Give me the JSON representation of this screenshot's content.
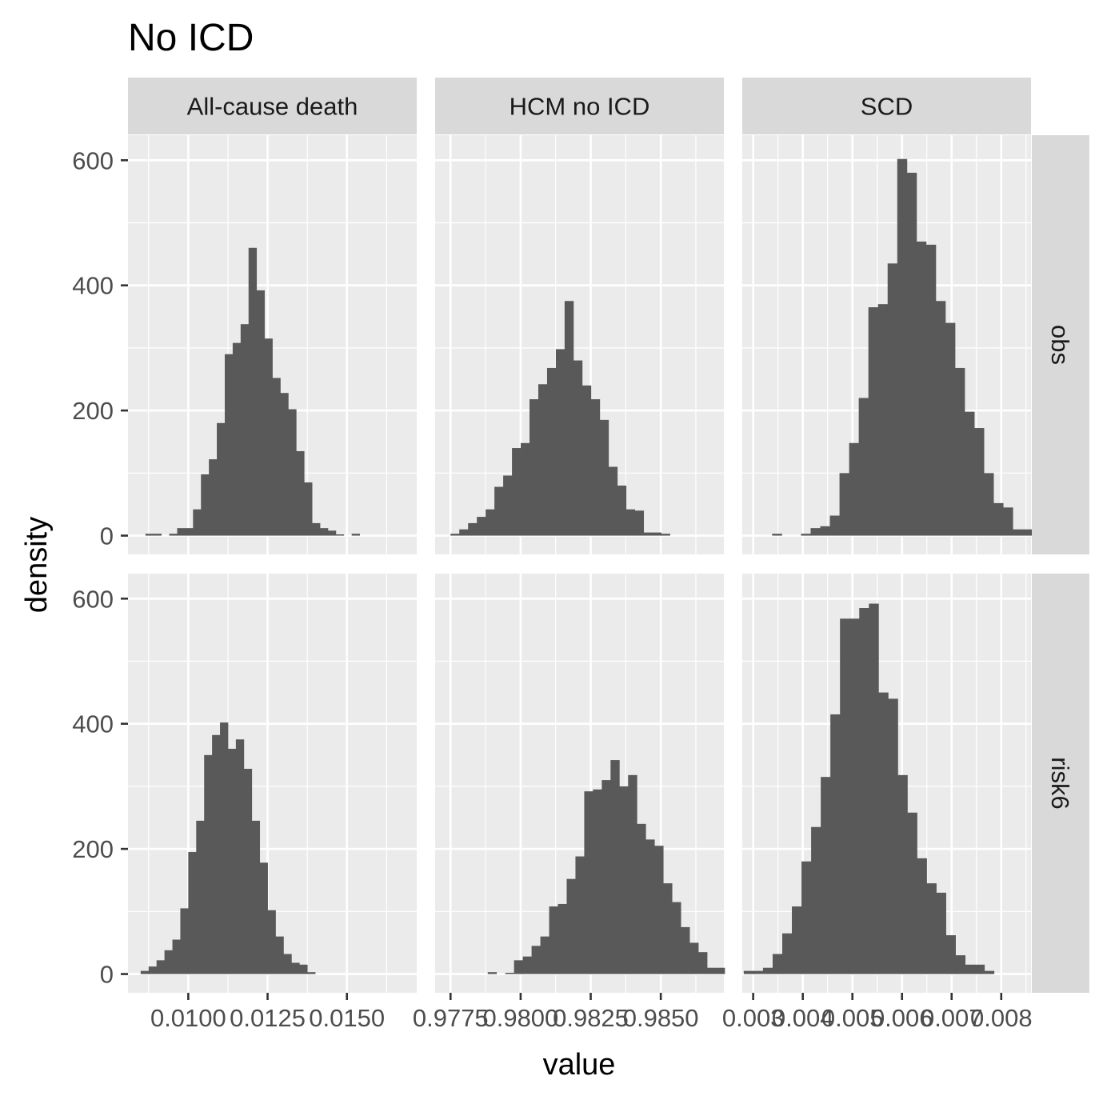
{
  "chart_data": {
    "type": "bar",
    "title": "No ICD",
    "xlabel": "value",
    "ylabel": "density",
    "ylim": [
      -30,
      640
    ],
    "y_ticks": [
      0,
      200,
      400,
      600
    ],
    "y_tick_labels": [
      "0",
      "200",
      "400",
      "600"
    ],
    "grid": true,
    "columns": [
      "All-cause death",
      "HCM no ICD",
      "SCD"
    ],
    "rows": [
      "obs",
      "risk6"
    ],
    "panels": [
      {
        "column": "All-cause death",
        "x_ticks": [
          0.01,
          0.0125,
          0.015
        ],
        "x_tick_labels": [
          "0.0100",
          "0.0125",
          "0.0150"
        ],
        "xlim": [
          0.0081,
          0.0172
        ],
        "obs": {
          "bin_start": 0.00865,
          "bin_width": 0.00025,
          "values": [
            3,
            3,
            0,
            3,
            12,
            12,
            42,
            98,
            122,
            180,
            290,
            308,
            338,
            460,
            392,
            315,
            252,
            228,
            202,
            135,
            85,
            20,
            12,
            8,
            2,
            0,
            3,
            0
          ]
        },
        "risk6": {
          "bin_start": 0.0085,
          "bin_width": 0.00025,
          "values": [
            5,
            12,
            22,
            38,
            55,
            105,
            195,
            245,
            350,
            382,
            402,
            360,
            375,
            328,
            245,
            178,
            102,
            60,
            32,
            18,
            15,
            3
          ]
        }
      },
      {
        "column": "HCM no ICD",
        "x_ticks": [
          0.9775,
          0.98,
          0.9825,
          0.985
        ],
        "x_tick_labels": [
          "0.9775",
          "0.9800",
          "0.9825",
          "0.9850"
        ],
        "xlim": [
          0.97695,
          0.98725
        ],
        "obs": {
          "bin_start": 0.9775,
          "bin_width": 0.000313,
          "values": [
            3,
            10,
            20,
            30,
            42,
            78,
            96,
            140,
            148,
            218,
            242,
            268,
            298,
            375,
            280,
            240,
            218,
            185,
            110,
            80,
            42,
            40,
            5,
            5,
            3,
            0,
            0,
            0,
            0,
            0,
            0
          ]
        },
        "risk6": {
          "bin_start": 0.9782,
          "bin_width": 0.000313,
          "values": [
            0,
            0,
            3,
            0,
            2,
            22,
            28,
            45,
            60,
            108,
            112,
            152,
            188,
            292,
            295,
            310,
            342,
            300,
            318,
            240,
            215,
            205,
            145,
            115,
            75,
            50,
            35,
            10,
            10
          ]
        }
      },
      {
        "column": "SCD",
        "x_ticks": [
          0.003,
          0.004,
          0.005,
          0.006,
          0.007,
          0.008
        ],
        "x_tick_labels": [
          "0.003",
          "0.004",
          "0.005",
          "0.006",
          "0.007",
          "0.008"
        ],
        "xlim": [
          0.00278,
          0.0086
        ],
        "obs": {
          "bin_start": 0.0028,
          "bin_width": 0.000194,
          "values": [
            0,
            0,
            0,
            3,
            0,
            0,
            3,
            12,
            15,
            32,
            100,
            148,
            220,
            365,
            370,
            435,
            602,
            580,
            470,
            465,
            375,
            340,
            268,
            198,
            172,
            100,
            52,
            45,
            10,
            10,
            20
          ]
        },
        "risk6": {
          "bin_start": 0.00281,
          "bin_width": 0.000194,
          "values": [
            5,
            5,
            10,
            32,
            65,
            108,
            180,
            235,
            315,
            415,
            568,
            568,
            585,
            592,
            450,
            440,
            318,
            258,
            185,
            145,
            130,
            62,
            30,
            15,
            15,
            5
          ]
        }
      }
    ]
  }
}
